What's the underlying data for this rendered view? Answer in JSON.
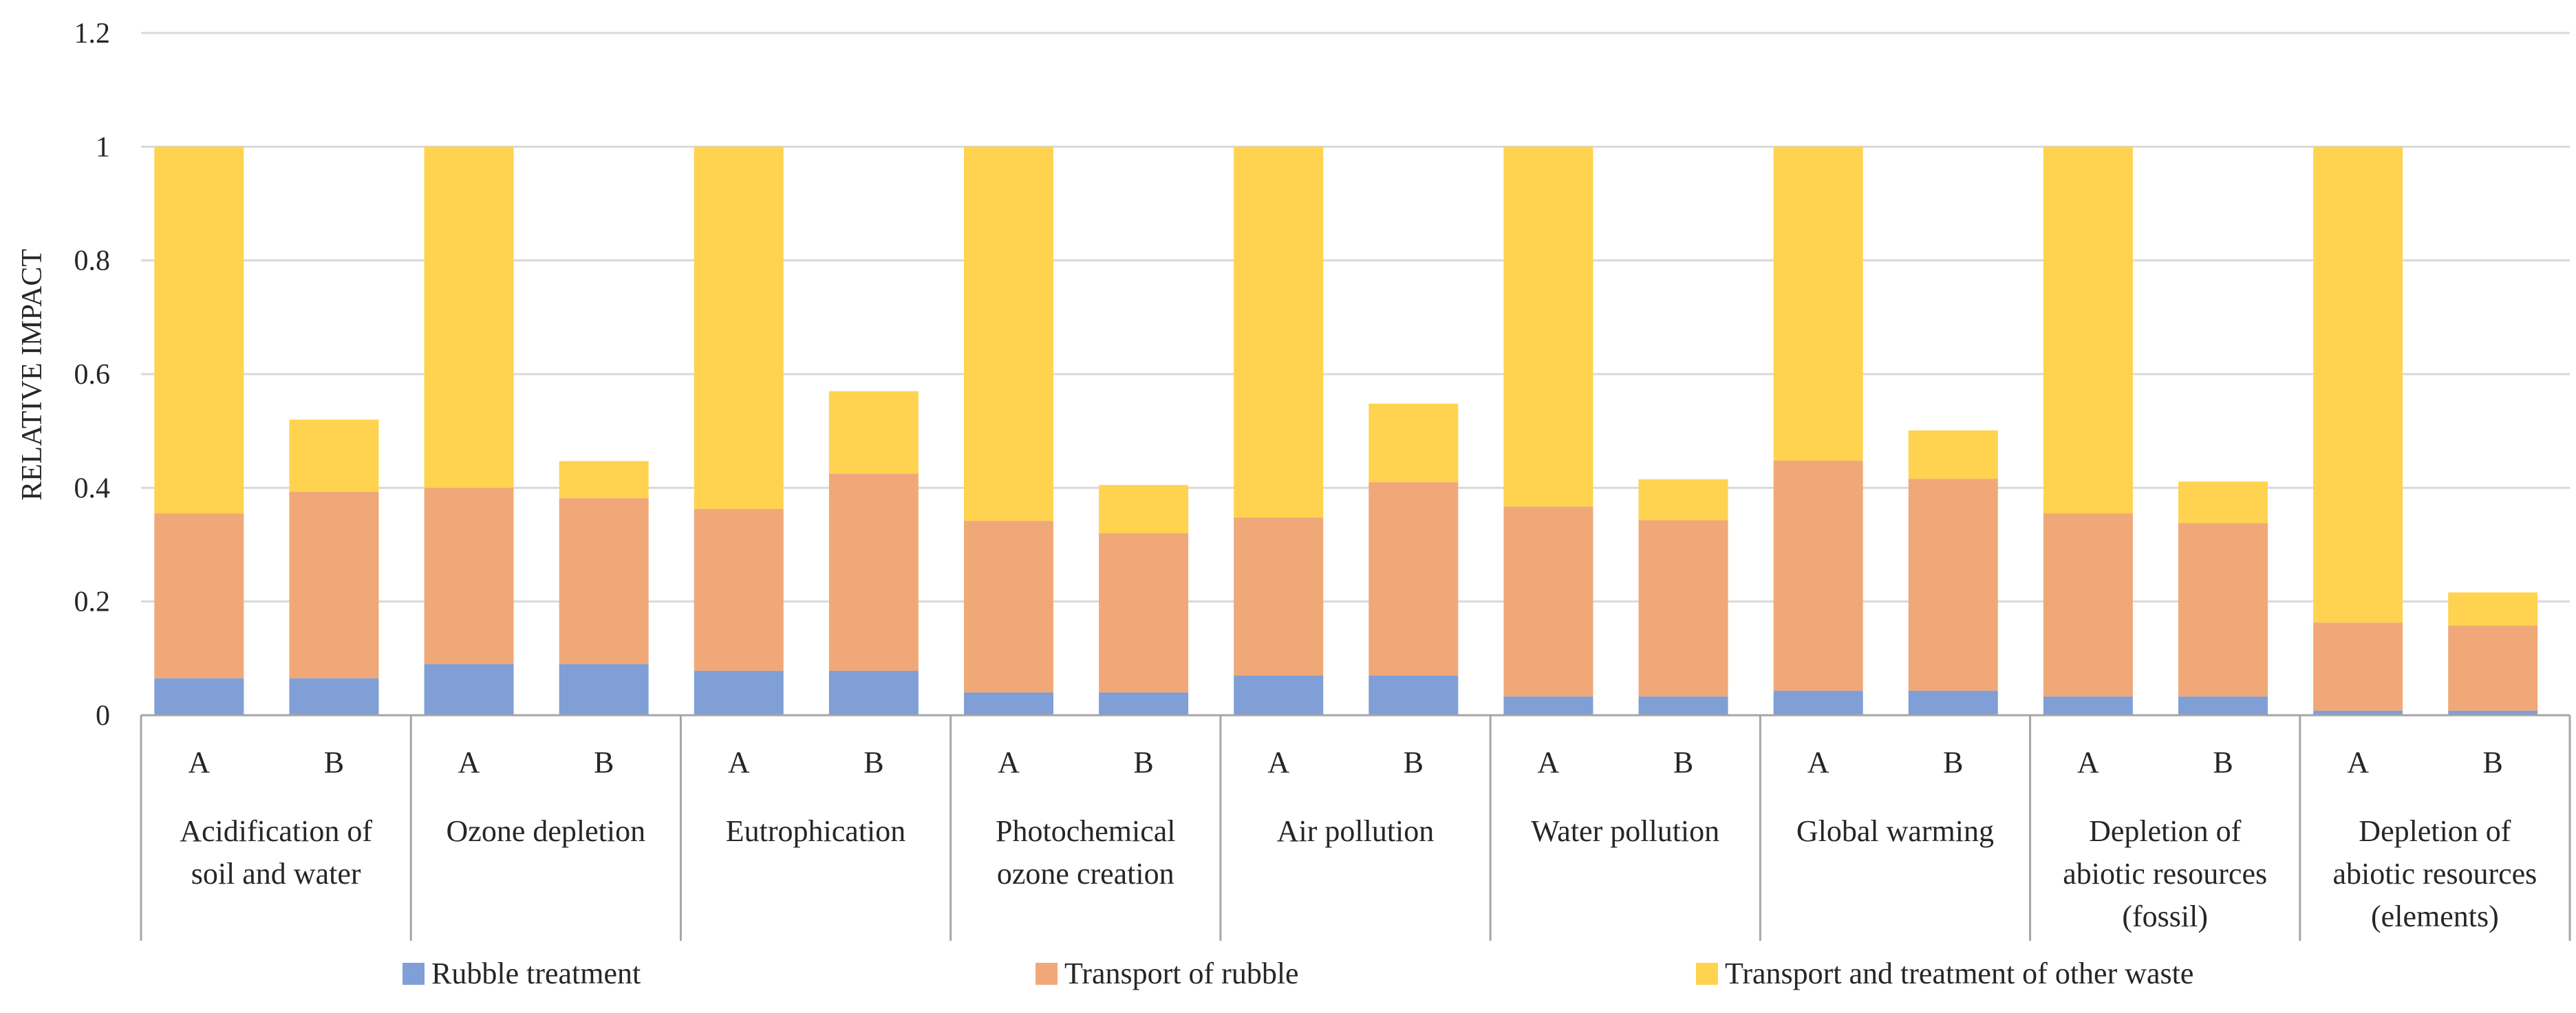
{
  "chart_data": {
    "type": "bar",
    "stacked": true,
    "ylabel": "RELATIVE IMPACT",
    "ylim": [
      0,
      1.2
    ],
    "yticks": [
      "0",
      "0.2",
      "0.4",
      "0.6",
      "0.8",
      "1",
      "1.2"
    ],
    "ytick_values": [
      0,
      0.2,
      0.4,
      0.6,
      0.8,
      1.0,
      1.2
    ],
    "grid": true,
    "legend_position": "bottom",
    "categories": [
      {
        "name": "Acidification of soil and water",
        "lines": [
          "Acidification of",
          "soil and water"
        ]
      },
      {
        "name": "Ozone depletion",
        "lines": [
          "Ozone depletion"
        ]
      },
      {
        "name": "Eutrophication",
        "lines": [
          "Eutrophication"
        ]
      },
      {
        "name": "Photochemical ozone creation",
        "lines": [
          "Photochemical",
          "ozone creation"
        ]
      },
      {
        "name": "Air pollution",
        "lines": [
          "Air pollution"
        ]
      },
      {
        "name": "Water pollution",
        "lines": [
          "Water pollution"
        ]
      },
      {
        "name": "Global warming",
        "lines": [
          "Global warming"
        ]
      },
      {
        "name": "Depletion of abiotic resources (fossil)",
        "lines": [
          "Depletion of",
          "abiotic resources",
          "(fossil)"
        ]
      },
      {
        "name": "Depletion of abiotic resources (elements)",
        "lines": [
          "Depletion of",
          "abiotic resources",
          "(elements)"
        ]
      }
    ],
    "subcategories": [
      "A",
      "B"
    ],
    "series": [
      {
        "name": "Rubble treatment",
        "color": "#7f9fd6",
        "values": [
          [
            0.065,
            0.065
          ],
          [
            0.09,
            0.09
          ],
          [
            0.078,
            0.078
          ],
          [
            0.04,
            0.04
          ],
          [
            0.07,
            0.07
          ],
          [
            0.033,
            0.033
          ],
          [
            0.043,
            0.043
          ],
          [
            0.033,
            0.033
          ],
          [
            0.008,
            0.008
          ]
        ]
      },
      {
        "name": "Transport of rubble",
        "color": "#f0a878",
        "values": [
          [
            0.29,
            0.328
          ],
          [
            0.31,
            0.292
          ],
          [
            0.285,
            0.347
          ],
          [
            0.302,
            0.28
          ],
          [
            0.278,
            0.34
          ],
          [
            0.334,
            0.31
          ],
          [
            0.405,
            0.373
          ],
          [
            0.322,
            0.305
          ],
          [
            0.155,
            0.15
          ]
        ]
      },
      {
        "name": "Transport and treatment of other waste",
        "color": "#ffd34f",
        "values": [
          [
            0.645,
            0.127
          ],
          [
            0.6,
            0.065
          ],
          [
            0.637,
            0.145
          ],
          [
            0.658,
            0.085
          ],
          [
            0.652,
            0.138
          ],
          [
            0.633,
            0.072
          ],
          [
            0.552,
            0.085
          ],
          [
            0.645,
            0.073
          ],
          [
            0.837,
            0.058
          ]
        ]
      }
    ]
  }
}
